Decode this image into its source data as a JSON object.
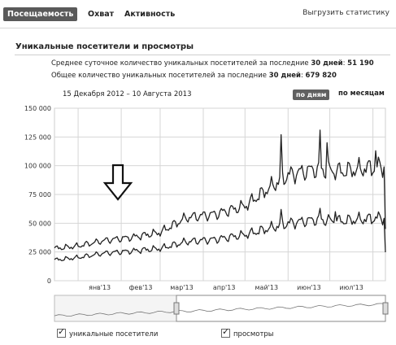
{
  "tabs": [
    {
      "label": "Посещаемость",
      "active": true
    },
    {
      "label": "Охват",
      "active": false
    },
    {
      "label": "Активность",
      "active": false
    }
  ],
  "export_label": "Выгрузить статистику",
  "section_title": "Уникальные посетители и просмотры",
  "stats": {
    "avg_daily_prefix": "Среднее суточное количество уникальных посетителей за последние",
    "avg_daily_days": "30 дней",
    "avg_daily_value": "51 190",
    "total_prefix": "Общее количество уникальных посетителей за последние",
    "total_days": "30 дней",
    "total_value": "679 820"
  },
  "date_range": "15 Декабря 2012 – 10 Августа 2013",
  "period_buttons": {
    "days": "по дням",
    "months": "по месяцам",
    "active": "days"
  },
  "chart_data": {
    "type": "line",
    "ylim": [
      0,
      150000
    ],
    "y_ticks": [
      "0",
      "25 000",
      "50 000",
      "75 000",
      "100 000",
      "125 000",
      "150 000"
    ],
    "x_tick_labels": [
      "янв'13",
      "фев'13",
      "мар'13",
      "апр'13",
      "май'13",
      "июн'13",
      "июл'13"
    ],
    "x_start": "2012-12-15",
    "x_end": "2013-08-10",
    "series": [
      {
        "name": "просмотры",
        "color": "#222222",
        "anchors": [
          [
            "2012-12-15",
            28000
          ],
          [
            "2012-12-31",
            30000
          ],
          [
            "2013-01-20",
            35000
          ],
          [
            "2013-02-10",
            38000
          ],
          [
            "2013-03-01",
            42000
          ],
          [
            "2013-03-20",
            55000
          ],
          [
            "2013-04-10",
            58000
          ],
          [
            "2013-05-01",
            65000
          ],
          [
            "2013-05-20",
            82000
          ],
          [
            "2013-06-01",
            92000
          ],
          [
            "2013-06-20",
            97000
          ],
          [
            "2013-07-10",
            95000
          ],
          [
            "2013-08-10",
            100000
          ]
        ],
        "spikes": [
          [
            "2013-05-27",
            127000
          ],
          [
            "2013-06-24",
            131000
          ],
          [
            "2013-06-29",
            120000
          ],
          [
            "2013-08-03",
            113000
          ]
        ]
      },
      {
        "name": "уникальные посетители",
        "color": "#222222",
        "anchors": [
          [
            "2012-12-15",
            18000
          ],
          [
            "2012-12-31",
            20000
          ],
          [
            "2013-01-20",
            24000
          ],
          [
            "2013-02-10",
            26000
          ],
          [
            "2013-03-01",
            28000
          ],
          [
            "2013-03-20",
            34000
          ],
          [
            "2013-04-10",
            36000
          ],
          [
            "2013-05-01",
            40000
          ],
          [
            "2013-05-20",
            46000
          ],
          [
            "2013-06-01",
            50000
          ],
          [
            "2013-06-20",
            53000
          ],
          [
            "2013-07-10",
            52000
          ],
          [
            "2013-08-10",
            55000
          ]
        ],
        "spikes": [
          [
            "2013-05-27",
            62000
          ],
          [
            "2013-06-24",
            63000
          ],
          [
            "2013-07-05",
            60000
          ]
        ]
      }
    ],
    "grid": true,
    "annotation": "down-arrow",
    "range_selector": {
      "start": "2012-12-15",
      "end": "2013-08-10"
    }
  },
  "legend": [
    {
      "label": "уникальные посетители",
      "checked": true
    },
    {
      "label": "просмотры",
      "checked": true
    }
  ]
}
